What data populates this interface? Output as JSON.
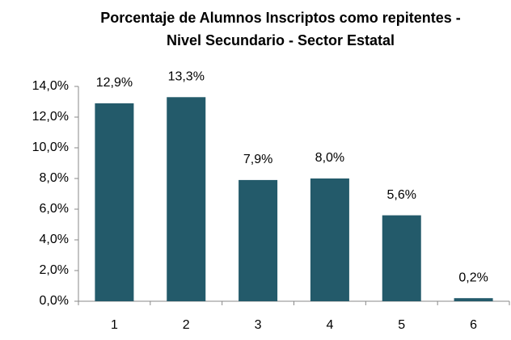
{
  "chart_data": {
    "type": "bar",
    "title": "Porcentaje de Alumnos Inscriptos como repitentes - Nivel Secundario - Sector Estatal",
    "categories": [
      "1",
      "2",
      "3",
      "4",
      "5",
      "6"
    ],
    "values": [
      12.9,
      13.3,
      7.9,
      8.0,
      5.6,
      0.2
    ],
    "value_labels": [
      "12,9%",
      "13,3%",
      "7,9%",
      "8,0%",
      "5,6%",
      "0,2%"
    ],
    "color": "#235a6a",
    "ylim": [
      0,
      14
    ],
    "yticks": [
      {
        "value": 0,
        "label": "0,0%"
      },
      {
        "value": 2,
        "label": "2,0%"
      },
      {
        "value": 4,
        "label": "4,0%"
      },
      {
        "value": 6,
        "label": "6,0%"
      },
      {
        "value": 8,
        "label": "8,0%"
      },
      {
        "value": 10,
        "label": "10,0%"
      },
      {
        "value": 12,
        "label": "12,0%"
      },
      {
        "value": 14,
        "label": "14,0%"
      }
    ],
    "grid": false
  }
}
